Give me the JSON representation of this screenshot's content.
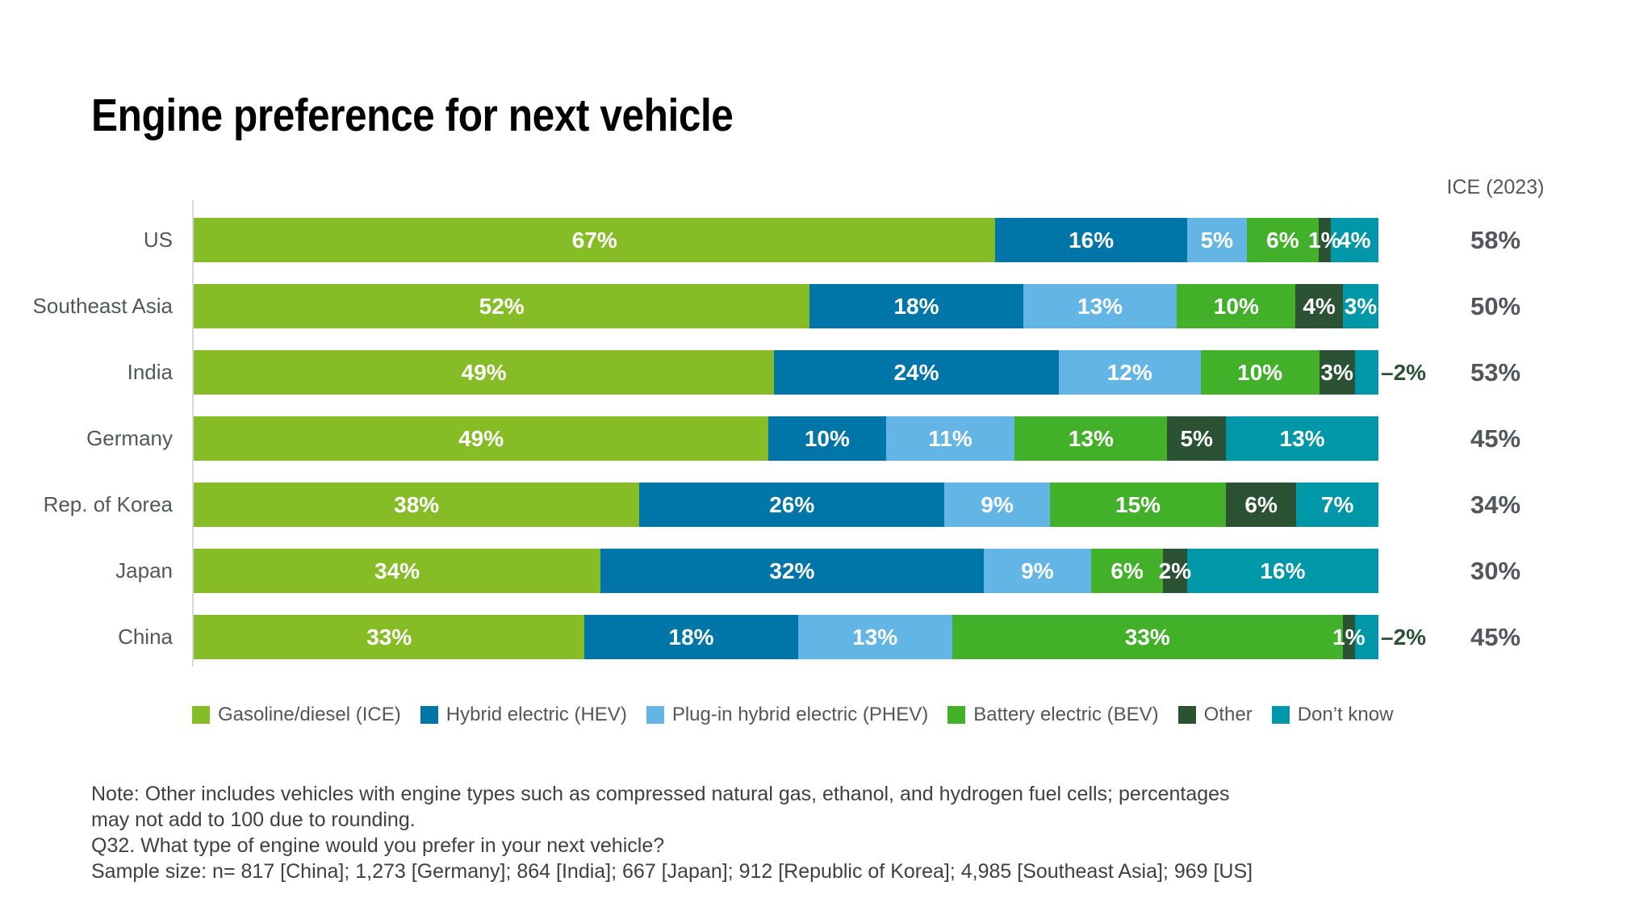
{
  "title": "Engine preference for next vehicle",
  "chart_data": {
    "type": "bar",
    "stacked": true,
    "orientation": "horizontal",
    "unit": "%",
    "xlim": [
      0,
      100
    ],
    "grid": false,
    "legend_position": "bottom",
    "categories": [
      "US",
      "Southeast Asia",
      "India",
      "Germany",
      "Rep. of Korea",
      "Japan",
      "China"
    ],
    "series": [
      {
        "name": "Gasoline/diesel (ICE)",
        "color": "#86BC25",
        "values": [
          67,
          52,
          49,
          49,
          38,
          34,
          33
        ]
      },
      {
        "name": "Hybrid electric (HEV)",
        "color": "#0076A8",
        "values": [
          16,
          18,
          24,
          10,
          26,
          32,
          18
        ]
      },
      {
        "name": "Plug-in hybrid electric (PHEV)",
        "color": "#62B5E5",
        "values": [
          5,
          13,
          12,
          11,
          9,
          9,
          13
        ]
      },
      {
        "name": "Battery electric (BEV)",
        "color": "#43B02A",
        "values": [
          6,
          10,
          10,
          13,
          15,
          6,
          33
        ]
      },
      {
        "name": "Other",
        "color": "#2C5234",
        "values": [
          1,
          4,
          3,
          5,
          6,
          2,
          1
        ]
      },
      {
        "name": "Don’t know",
        "color": "#0097A9",
        "values": [
          4,
          3,
          2,
          13,
          7,
          16,
          2
        ]
      }
    ],
    "outside_labels": [
      null,
      null,
      "–2%",
      null,
      null,
      null,
      "–2%"
    ],
    "right_column": {
      "header": "ICE (2023)",
      "values": [
        "58%",
        "50%",
        "53%",
        "45%",
        "34%",
        "30%",
        "45%"
      ]
    }
  },
  "notes": [
    "Note: Other includes vehicles with engine types such as compressed natural gas, ethanol, and hydrogen fuel cells; percentages",
    "may not add to 100 due to rounding.",
    "Q32. What type of engine would you prefer in your next vehicle?",
    "Sample size: n= 817 [China]; 1,273 [Germany]; 864 [India]; 667 [Japan]; 912 [Republic of Korea]; 4,985 [Southeast Asia]; 969 [US]"
  ],
  "colors": {
    "axis_line": "#D9D9D9",
    "label_gray": "#53565A",
    "note_gray": "#404040",
    "outside_label_green": "#2C5234",
    "title_black": "#000000",
    "bar_label_white": "#FFFFFF"
  }
}
